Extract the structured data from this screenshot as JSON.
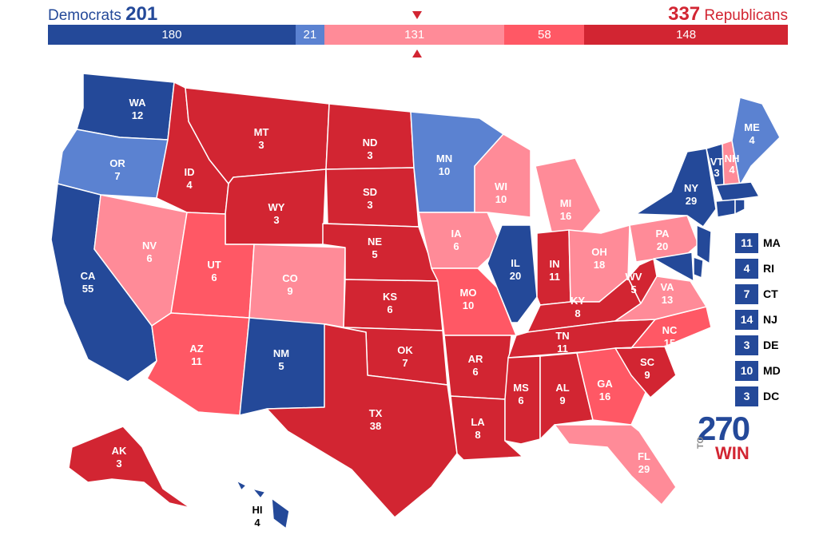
{
  "header": {
    "dem_label": "Democrats",
    "dem_total": "201",
    "rep_total": "337",
    "rep_label": "Republicans"
  },
  "colors": {
    "safe_d": "#244999",
    "likely_d": "#5b82d1",
    "tossup_lean_r": "#ff8b98",
    "likely_r": "#ff5865",
    "safe_r": "#d22532",
    "marker": "#d22532"
  },
  "bar": [
    {
      "value": 180,
      "label": "180",
      "color": "#244999"
    },
    {
      "value": 21,
      "label": "21",
      "color": "#5b82d1"
    },
    {
      "value": 131,
      "label": "131",
      "color": "#ff8b98"
    },
    {
      "value": 58,
      "label": "58",
      "color": "#ff5865"
    },
    {
      "value": 148,
      "label": "148",
      "color": "#d22532"
    }
  ],
  "states": {
    "WA": {
      "abbr": "WA",
      "ev": "12",
      "rating": "safe_d"
    },
    "OR": {
      "abbr": "OR",
      "ev": "7",
      "rating": "likely_d"
    },
    "CA": {
      "abbr": "CA",
      "ev": "55",
      "rating": "safe_d"
    },
    "NV": {
      "abbr": "NV",
      "ev": "6",
      "rating": "tossup_lean_r"
    },
    "ID": {
      "abbr": "ID",
      "ev": "4",
      "rating": "safe_r"
    },
    "MT": {
      "abbr": "MT",
      "ev": "3",
      "rating": "safe_r"
    },
    "WY": {
      "abbr": "WY",
      "ev": "3",
      "rating": "safe_r"
    },
    "UT": {
      "abbr": "UT",
      "ev": "6",
      "rating": "likely_r"
    },
    "AZ": {
      "abbr": "AZ",
      "ev": "11",
      "rating": "likely_r"
    },
    "CO": {
      "abbr": "CO",
      "ev": "9",
      "rating": "tossup_lean_r"
    },
    "NM": {
      "abbr": "NM",
      "ev": "5",
      "rating": "safe_d"
    },
    "ND": {
      "abbr": "ND",
      "ev": "3",
      "rating": "safe_r"
    },
    "SD": {
      "abbr": "SD",
      "ev": "3",
      "rating": "safe_r"
    },
    "NE": {
      "abbr": "NE",
      "ev": "5",
      "rating": "safe_r"
    },
    "KS": {
      "abbr": "KS",
      "ev": "6",
      "rating": "safe_r"
    },
    "OK": {
      "abbr": "OK",
      "ev": "7",
      "rating": "safe_r"
    },
    "TX": {
      "abbr": "TX",
      "ev": "38",
      "rating": "safe_r"
    },
    "MN": {
      "abbr": "MN",
      "ev": "10",
      "rating": "likely_d"
    },
    "IA": {
      "abbr": "IA",
      "ev": "6",
      "rating": "tossup_lean_r"
    },
    "MO": {
      "abbr": "MO",
      "ev": "10",
      "rating": "likely_r"
    },
    "AR": {
      "abbr": "AR",
      "ev": "6",
      "rating": "safe_r"
    },
    "LA": {
      "abbr": "LA",
      "ev": "8",
      "rating": "safe_r"
    },
    "WI": {
      "abbr": "WI",
      "ev": "10",
      "rating": "tossup_lean_r"
    },
    "IL": {
      "abbr": "IL",
      "ev": "20",
      "rating": "safe_d"
    },
    "MI": {
      "abbr": "MI",
      "ev": "16",
      "rating": "tossup_lean_r"
    },
    "IN": {
      "abbr": "IN",
      "ev": "11",
      "rating": "safe_r"
    },
    "OH": {
      "abbr": "OH",
      "ev": "18",
      "rating": "tossup_lean_r"
    },
    "KY": {
      "abbr": "KY",
      "ev": "8",
      "rating": "safe_r"
    },
    "TN": {
      "abbr": "TN",
      "ev": "11",
      "rating": "safe_r"
    },
    "MS": {
      "abbr": "MS",
      "ev": "6",
      "rating": "safe_r"
    },
    "AL": {
      "abbr": "AL",
      "ev": "9",
      "rating": "safe_r"
    },
    "GA": {
      "abbr": "GA",
      "ev": "16",
      "rating": "likely_r"
    },
    "FL": {
      "abbr": "FL",
      "ev": "29",
      "rating": "tossup_lean_r"
    },
    "SC": {
      "abbr": "SC",
      "ev": "9",
      "rating": "safe_r"
    },
    "NC": {
      "abbr": "NC",
      "ev": "15",
      "rating": "likely_r"
    },
    "VA": {
      "abbr": "VA",
      "ev": "13",
      "rating": "tossup_lean_r"
    },
    "WV": {
      "abbr": "WV",
      "ev": "5",
      "rating": "safe_r"
    },
    "PA": {
      "abbr": "PA",
      "ev": "20",
      "rating": "tossup_lean_r"
    },
    "NY": {
      "abbr": "NY",
      "ev": "29",
      "rating": "safe_d"
    },
    "VT": {
      "abbr": "VT",
      "ev": "3",
      "rating": "safe_d"
    },
    "NH": {
      "abbr": "NH",
      "ev": "4",
      "rating": "tossup_lean_r"
    },
    "ME": {
      "abbr": "ME",
      "ev": "4",
      "rating": "likely_d"
    },
    "AK": {
      "abbr": "AK",
      "ev": "3",
      "rating": "safe_r"
    },
    "HI": {
      "abbr": "HI",
      "ev": "4",
      "rating": "safe_d"
    }
  },
  "small_states": [
    {
      "abbr": "MA",
      "ev": "11",
      "color": "#244999"
    },
    {
      "abbr": "RI",
      "ev": "4",
      "color": "#244999"
    },
    {
      "abbr": "CT",
      "ev": "7",
      "color": "#244999"
    },
    {
      "abbr": "NJ",
      "ev": "14",
      "color": "#244999"
    },
    {
      "abbr": "DE",
      "ev": "3",
      "color": "#244999"
    },
    {
      "abbr": "MD",
      "ev": "10",
      "color": "#244999"
    },
    {
      "abbr": "DC",
      "ev": "3",
      "color": "#244999"
    }
  ],
  "logo": {
    "number": "270",
    "to": "TO",
    "win": "WIN"
  }
}
